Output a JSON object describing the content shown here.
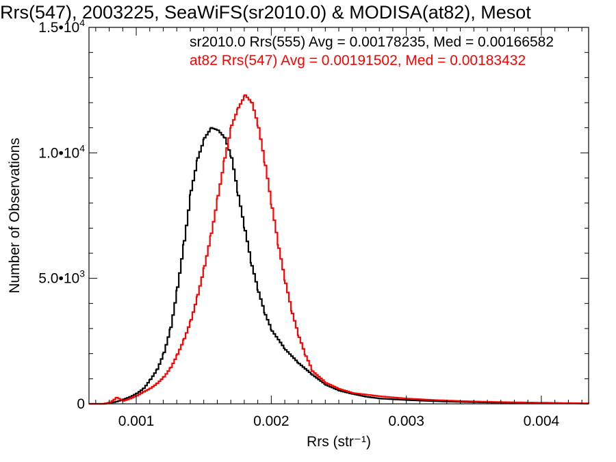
{
  "title": "Rrs(547), 2003225, SeaWiFS(sr2010.0) & MODISA(at82), Mesot",
  "chart_data": {
    "type": "line",
    "xlabel": "Rrs (str⁻¹)",
    "ylabel": "Number of Observations",
    "xlim": [
      0.00065,
      0.00435
    ],
    "ylim": [
      0,
      15000
    ],
    "x_ticks": [
      0.001,
      0.002,
      0.003,
      0.004
    ],
    "x_tick_labels": [
      "0.001",
      "0.002",
      "0.003",
      "0.004"
    ],
    "y_ticks": [
      0,
      5000,
      10000,
      15000
    ],
    "y_tick_labels": [
      {
        "mant": "0",
        "exp": ""
      },
      {
        "mant": "5.0•10",
        "exp": "3"
      },
      {
        "mant": "1.0•10",
        "exp": "4"
      },
      {
        "mant": "1.5•10",
        "exp": "4"
      }
    ],
    "grid": false,
    "annotations": [
      {
        "text": "sr2010.0 Rrs(555) Avg = 0.00178235, Med = 0.00166582",
        "color": "#000000"
      },
      {
        "text": "at82 Rrs(547) Avg = 0.00191502, Med = 0.00183432",
        "color": "#ff0000"
      }
    ],
    "series": [
      {
        "color": "#000000",
        "x": [
          0.00065,
          0.00075,
          0.0008,
          0.00085,
          0.0009,
          0.00095,
          0.001,
          0.00105,
          0.0011,
          0.00115,
          0.0012,
          0.00125,
          0.0013,
          0.00135,
          0.0014,
          0.00145,
          0.0015,
          0.00155,
          0.0016,
          0.00165,
          0.0017,
          0.00175,
          0.0018,
          0.00185,
          0.0019,
          0.00195,
          0.002,
          0.0021,
          0.0022,
          0.0023,
          0.0024,
          0.0025,
          0.0026,
          0.0027,
          0.0028,
          0.003,
          0.0032,
          0.0034,
          0.0036,
          0.0038,
          0.004,
          0.0042,
          0.00435
        ],
        "y": [
          0,
          0,
          30,
          90,
          180,
          280,
          420,
          620,
          980,
          1380,
          2050,
          3050,
          4650,
          6500,
          8500,
          9800,
          10600,
          11000,
          10900,
          10600,
          9800,
          8300,
          6900,
          5500,
          4450,
          3550,
          2900,
          2150,
          1600,
          1150,
          750,
          520,
          390,
          280,
          210,
          150,
          105,
          75,
          55,
          40,
          30,
          20,
          10
        ]
      },
      {
        "color": "#ff0000",
        "x": [
          0.00065,
          0.00075,
          0.0008,
          0.00085,
          0.0009,
          0.00095,
          0.001,
          0.00105,
          0.0011,
          0.00115,
          0.0012,
          0.00125,
          0.0013,
          0.00135,
          0.0014,
          0.00145,
          0.0015,
          0.00155,
          0.0016,
          0.00165,
          0.0017,
          0.00175,
          0.0018,
          0.00185,
          0.0019,
          0.00195,
          0.002,
          0.00205,
          0.0021,
          0.00215,
          0.0022,
          0.00225,
          0.0023,
          0.0024,
          0.0025,
          0.0026,
          0.0028,
          0.003,
          0.0032,
          0.0034,
          0.0036,
          0.0038,
          0.004,
          0.0042,
          0.00435
        ],
        "y": [
          0,
          0,
          60,
          250,
          120,
          210,
          330,
          480,
          620,
          820,
          1080,
          1450,
          1980,
          2600,
          3350,
          4350,
          5500,
          6800,
          8300,
          9800,
          11100,
          11800,
          12300,
          12000,
          11000,
          9500,
          7800,
          6200,
          4800,
          3600,
          2650,
          1900,
          1300,
          830,
          590,
          430,
          300,
          210,
          150,
          110,
          80,
          60,
          45,
          30,
          20
        ]
      }
    ]
  }
}
